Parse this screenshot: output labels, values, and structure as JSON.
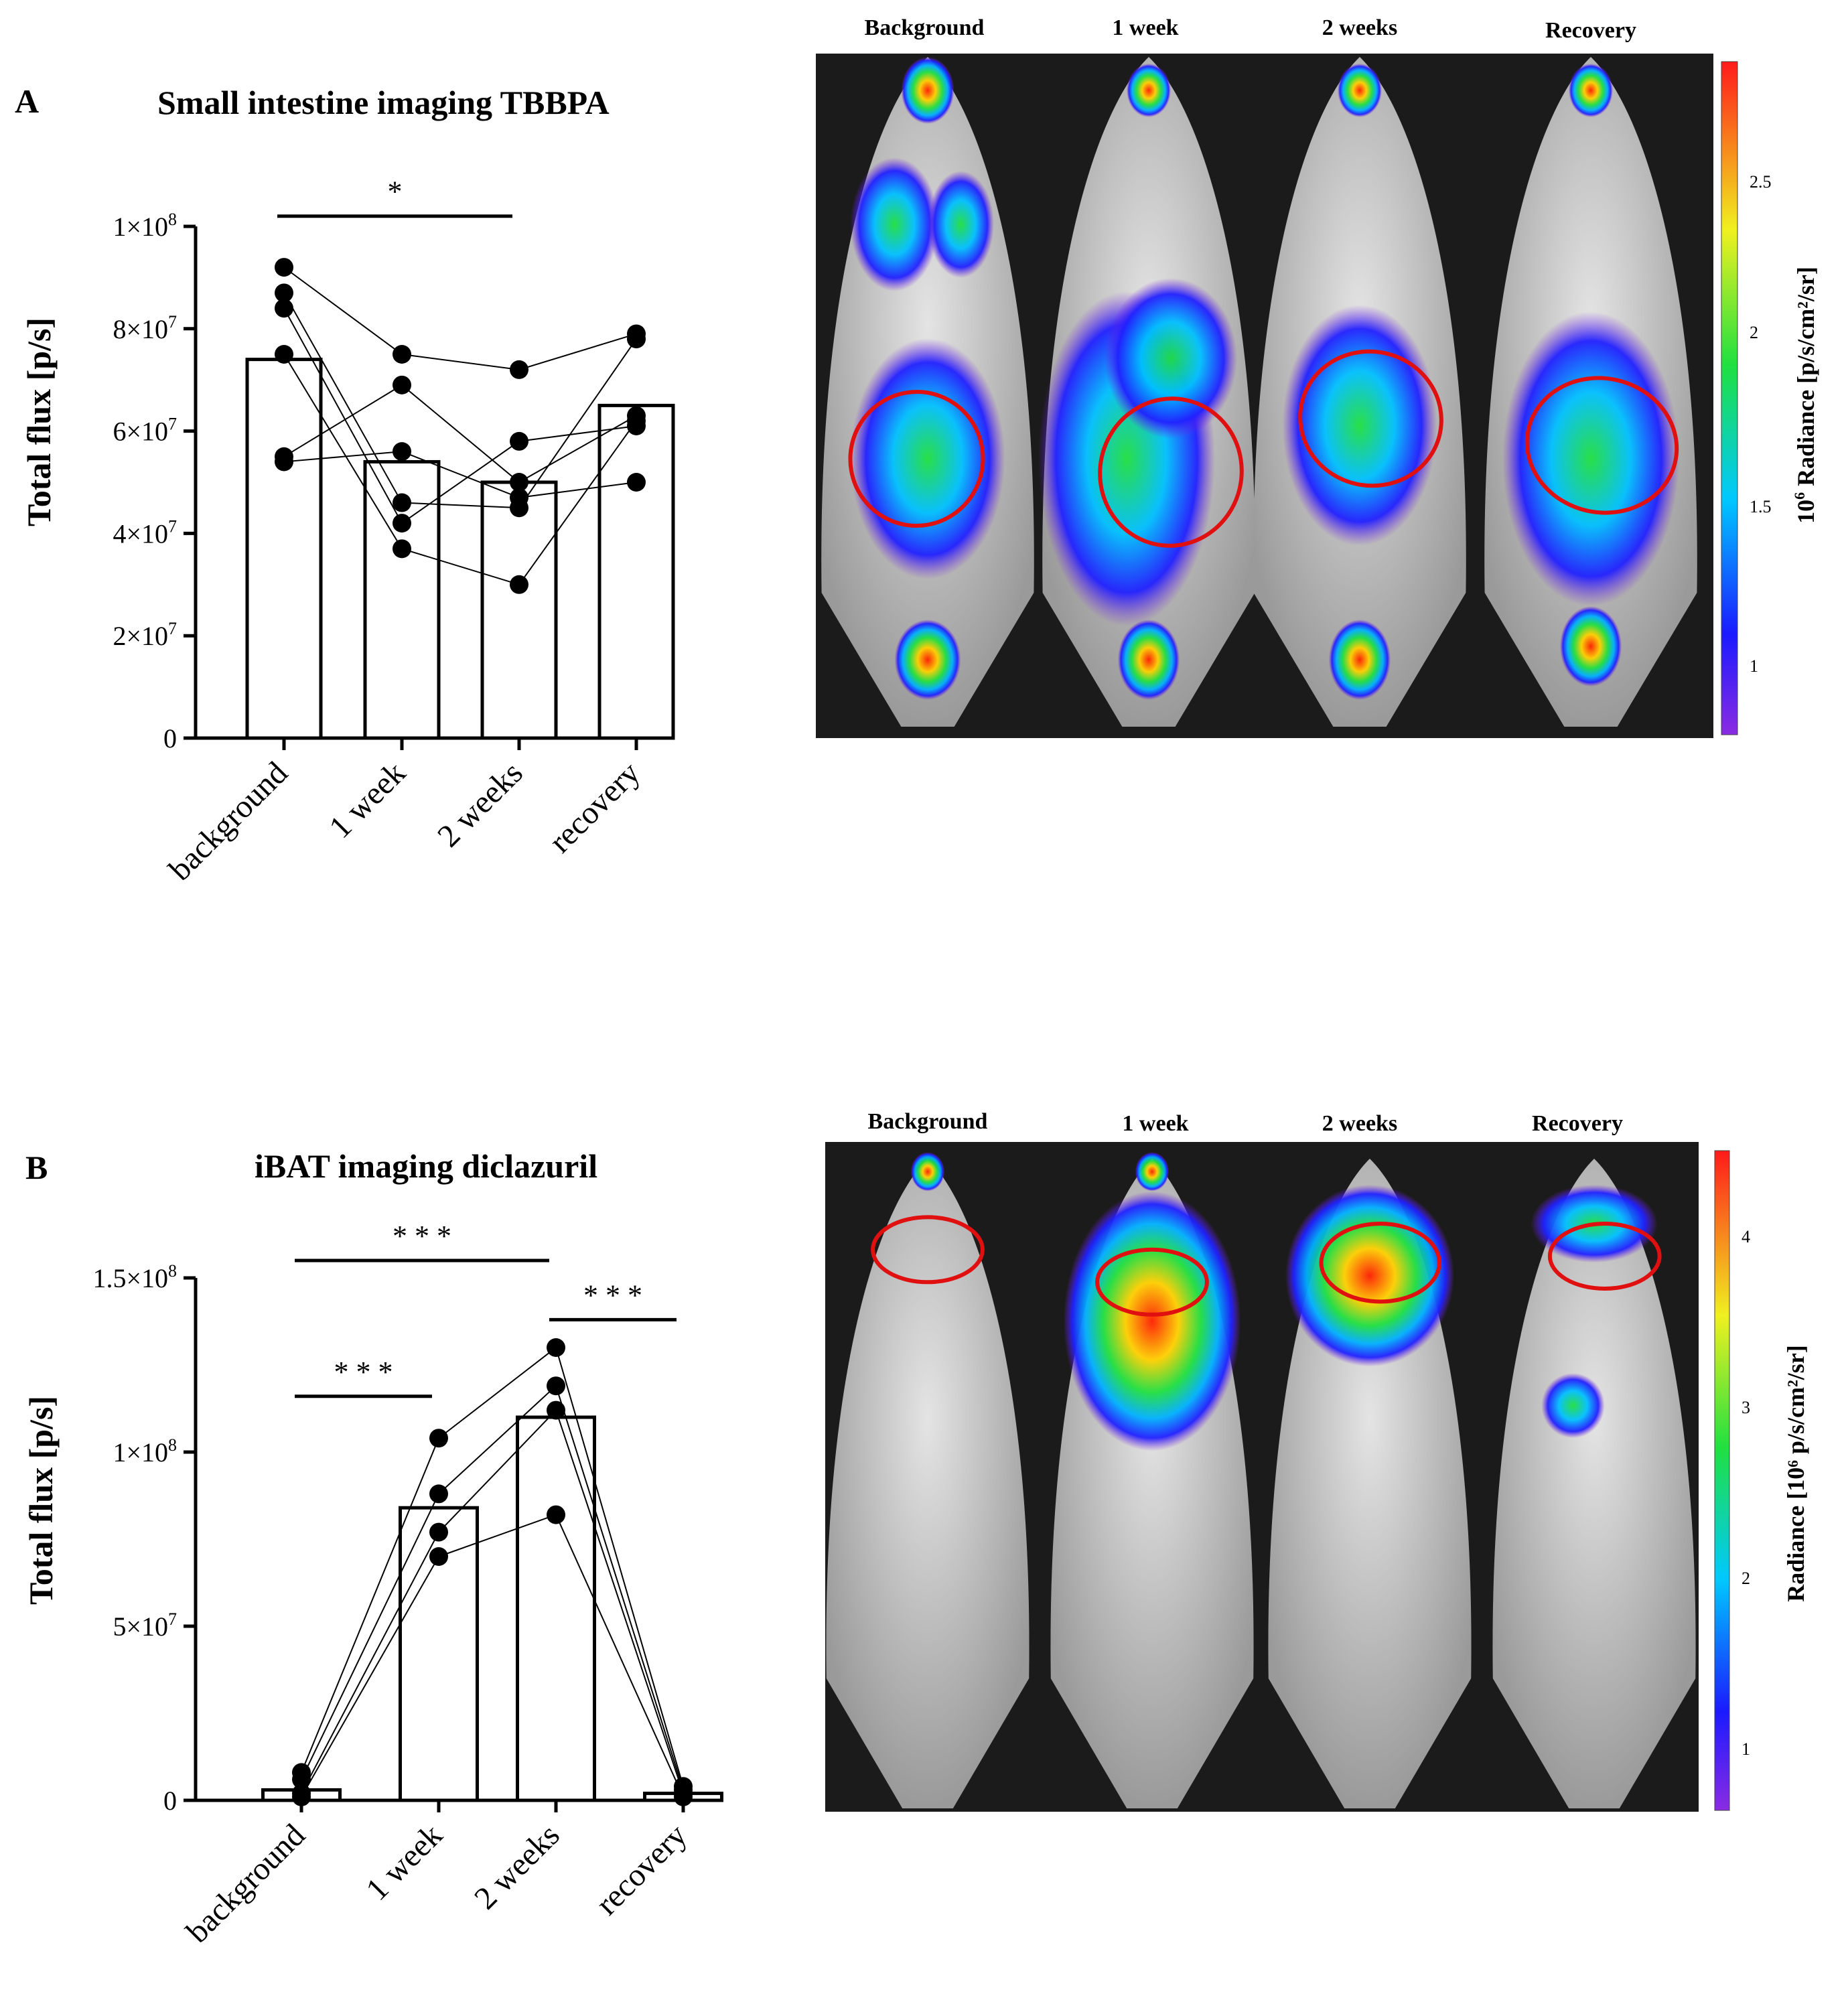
{
  "panels": [
    {
      "letter": "A",
      "chart_data": {
        "type": "bar",
        "title": "Small intestine imaging TBBPA",
        "ylabel": "Total flux [p/s]",
        "xlabel": "",
        "ylim": [
          0,
          100000000
        ],
        "yticks": [
          {
            "value": 0,
            "label": "0"
          },
          {
            "value": 20000000,
            "label": "2×10",
            "exp": "7"
          },
          {
            "value": 40000000,
            "label": "4×10",
            "exp": "7"
          },
          {
            "value": 60000000,
            "label": "6×10",
            "exp": "7"
          },
          {
            "value": 80000000,
            "label": "8×10",
            "exp": "7"
          },
          {
            "value": 100000000,
            "label": "1×10",
            "exp": "8"
          }
        ],
        "categories": [
          "background",
          "1 week",
          "2 weeks",
          "recovery"
        ],
        "means": [
          74000000,
          54000000,
          50000000,
          65000000
        ],
        "subjects": [
          [
            92000000,
            75000000,
            72000000,
            79000000
          ],
          [
            87000000,
            46000000,
            45000000,
            78000000
          ],
          [
            84000000,
            42000000,
            58000000,
            61000000
          ],
          [
            75000000,
            37000000,
            30000000,
            62000000
          ],
          [
            55000000,
            69000000,
            50000000,
            63000000
          ],
          [
            54000000,
            56000000,
            47000000,
            50000000
          ]
        ],
        "significance": [
          {
            "from": 0,
            "to": 2,
            "level": 102000000,
            "label": "*"
          }
        ]
      },
      "image": {
        "column_labels": [
          "Background",
          "1 week",
          "2 weeks",
          "Recovery"
        ],
        "colorbar_label": "Radiance [p/s/cm²/sr]",
        "colorbar_label_prefix": "10",
        "colorbar_label_exp": "6",
        "colorbar_ticks": [
          "2.5",
          "2",
          "1.5",
          "1"
        ]
      }
    },
    {
      "letter": "B",
      "chart_data": {
        "type": "bar",
        "title": "iBAT imaging diclazuril",
        "ylabel": "Total flux [p/s]",
        "xlabel": "",
        "ylim": [
          0,
          150000000
        ],
        "yticks": [
          {
            "value": 0,
            "label": "0"
          },
          {
            "value": 50000000,
            "label": "5×10",
            "exp": "7"
          },
          {
            "value": 100000000,
            "label": "1×10",
            "exp": "8"
          },
          {
            "value": 150000000,
            "label": "1.5×10",
            "exp": "8"
          }
        ],
        "categories": [
          "background",
          "1 week",
          "2 weeks",
          "recovery"
        ],
        "means": [
          3000000,
          84000000,
          110000000,
          2000000
        ],
        "subjects": [
          [
            8000000,
            104000000,
            130000000,
            4000000
          ],
          [
            6000000,
            88000000,
            119000000,
            3000000
          ],
          [
            2000000,
            77000000,
            112000000,
            2000000
          ],
          [
            1000000,
            70000000,
            82000000,
            1000000
          ]
        ],
        "significance": [
          {
            "from": 0,
            "to": 2,
            "level": 155000000,
            "label": "* * *"
          },
          {
            "from": 0,
            "to": 1,
            "level": 116000000,
            "label": "* * *"
          },
          {
            "from": 2,
            "to": 3,
            "level": 138000000,
            "label": "* * *"
          }
        ]
      },
      "image": {
        "column_labels": [
          "Background",
          "1 week",
          "2 weeks",
          "Recovery"
        ],
        "colorbar_label": "Radiance [10⁶ p/s/cm²/sr]",
        "colorbar_ticks": [
          "4",
          "3",
          "2",
          "1"
        ]
      }
    }
  ]
}
